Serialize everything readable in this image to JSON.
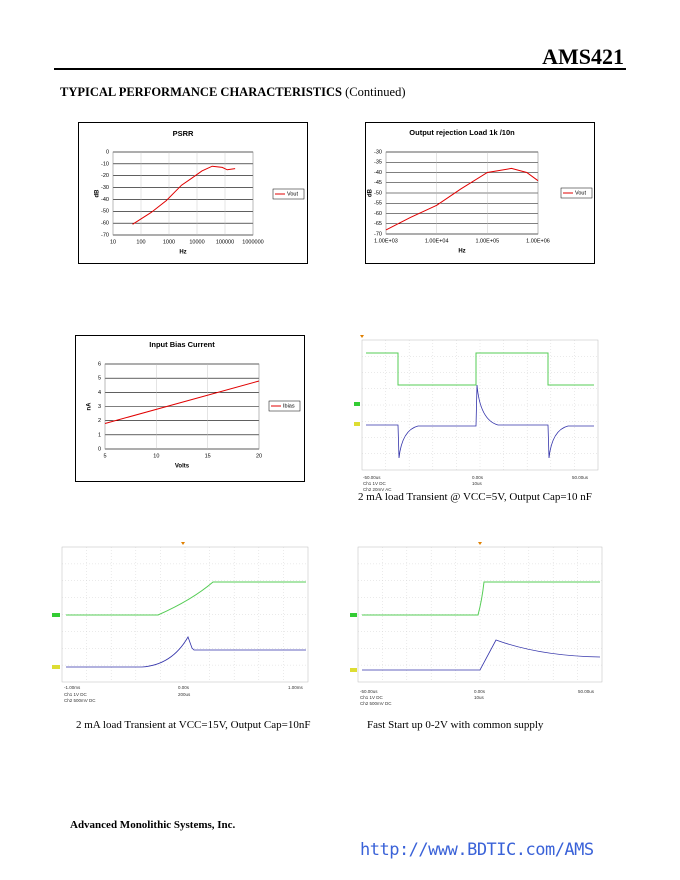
{
  "header": {
    "part": "AMS421"
  },
  "section": {
    "title": "TYPICAL PERFORMANCE CHARACTERISTICS",
    "suffix": "(Continued)"
  },
  "chart_data": [
    {
      "type": "line",
      "title": "PSRR",
      "x_label": "Hz",
      "y_label": "dB",
      "x_scale": "log",
      "x": [
        50,
        230,
        800,
        2800,
        6600,
        15000,
        35000,
        80000,
        120000,
        230000
      ],
      "series": [
        {
          "name": "Vout",
          "color": "#e00000",
          "values": [
            -61,
            -51,
            -41,
            -28,
            -22,
            -16,
            -12,
            -13,
            -15,
            -14
          ]
        }
      ],
      "xlim": [
        10,
        1000000
      ],
      "xticks": [
        10,
        100,
        1000,
        10000,
        100000,
        1000000
      ],
      "ylim": [
        -70,
        0
      ],
      "yticks": [
        -70,
        -60,
        -50,
        -40,
        -30,
        -20,
        -10,
        0
      ],
      "grid": true,
      "legend": "right"
    },
    {
      "type": "line",
      "title": "Output rejection Load 1k /10n",
      "x_label": "Hz",
      "y_label": "dB",
      "x_scale": "log",
      "x": [
        1000,
        3000,
        10000,
        30000,
        100000,
        300000,
        600000,
        1000000
      ],
      "series": [
        {
          "name": "Vout",
          "color": "#e00000",
          "values": [
            -68,
            -62,
            -56,
            -48,
            -40,
            -38,
            -40,
            -44
          ]
        }
      ],
      "xlim": [
        1000,
        1000000
      ],
      "xticks": [
        {
          "value": 1000,
          "label": "1.00E+03"
        },
        {
          "value": 10000,
          "label": "1.00E+04"
        },
        {
          "value": 100000,
          "label": "1.00E+05"
        },
        {
          "value": 1000000,
          "label": "1.00E+06"
        }
      ],
      "ylim": [
        -70,
        -30
      ],
      "yticks": [
        -70,
        -65,
        -60,
        -55,
        -50,
        -45,
        -40,
        -35,
        -30
      ],
      "grid": true,
      "legend": "right"
    },
    {
      "type": "line",
      "title": "Input Bias Current",
      "x_label": "Volts",
      "y_label": "nA",
      "x": [
        5,
        20
      ],
      "series": [
        {
          "name": "Ibias",
          "color": "#e00000",
          "values": [
            1.8,
            4.8
          ]
        }
      ],
      "xlim": [
        5,
        20
      ],
      "xticks": [
        5,
        10,
        15,
        20
      ],
      "ylim": [
        0,
        6
      ],
      "yticks": [
        0,
        1,
        2,
        3,
        4,
        5,
        6
      ],
      "grid": true,
      "legend": "right"
    }
  ],
  "scopes": [
    {
      "times": [
        "-50.00us",
        "0.00s",
        "50.00us"
      ],
      "channels": [
        "Ch1  1V  DC",
        "Ch2  20mV  AC"
      ],
      "timebase": "10us",
      "caption": "2 mA load Transient @ VCC=5V, Output Cap=10 nF"
    },
    {
      "times": [
        "-1.00ms",
        "0.00s",
        "1.00ms"
      ],
      "channels": [
        "Ch1  1V  DC",
        "Ch2  500mV  DC"
      ],
      "timebase": "200us",
      "caption": "2 mA load Transient at VCC=15V, Output Cap=10nF"
    },
    {
      "times": [
        "-50.00us",
        "0.00s",
        "50.00us"
      ],
      "channels": [
        "Ch1  1V  DC",
        "Ch2  500mV  DC"
      ],
      "timebase": "10us",
      "caption": "Fast Start up 0-2V with common supply"
    }
  ],
  "footer": {
    "company": "Advanced Monolithic Systems, Inc.",
    "url": "http://www.BDTIC.com/AMS"
  }
}
